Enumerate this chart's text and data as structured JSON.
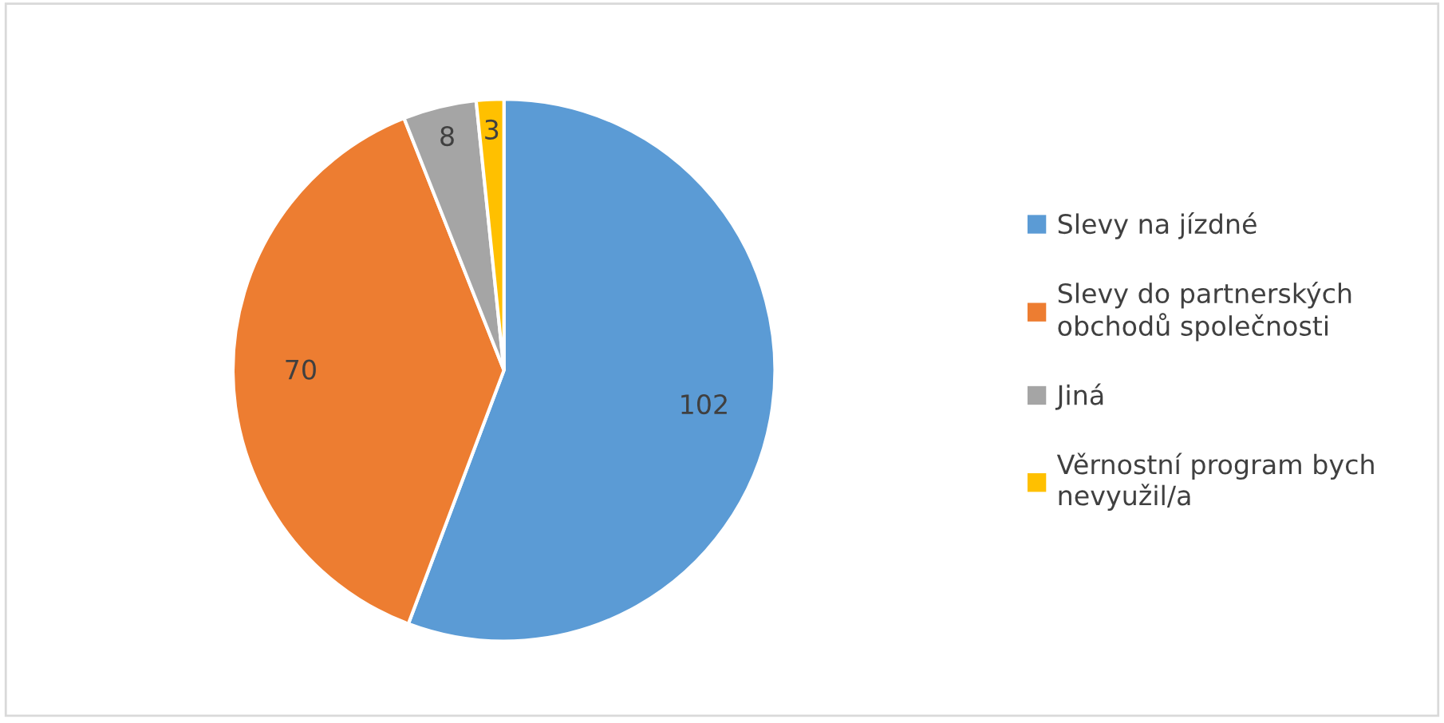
{
  "chart_data": {
    "type": "pie",
    "categories": [
      "Slevy na jízdné",
      "Slevy do partnerských obchodů společnosti",
      "Jiná",
      "Věrnostní program bych nevyužil/a"
    ],
    "values": [
      102,
      70,
      8,
      3
    ],
    "colors": [
      "#5b9bd5",
      "#ed7d31",
      "#a5a5a5",
      "#ffc000"
    ],
    "data_labels": true,
    "legend": "right"
  }
}
